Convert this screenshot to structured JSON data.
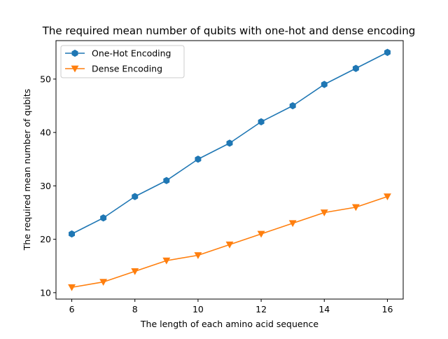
{
  "chart_data": {
    "type": "line",
    "title": "The required mean number of qubits with one-hot and dense encoding",
    "xlabel": "The length of each amino acid sequence",
    "ylabel": "The required mean number of qubits",
    "x": [
      6,
      7,
      8,
      9,
      10,
      11,
      12,
      13,
      14,
      15,
      16
    ],
    "xlim": [
      5.5,
      16.5
    ],
    "ylim": [
      8.8,
      57.2
    ],
    "xticks": [
      6,
      8,
      10,
      12,
      14,
      16
    ],
    "yticks": [
      10,
      20,
      30,
      40,
      50
    ],
    "grid": false,
    "legend_position": "upper-left",
    "series": [
      {
        "name": "One-Hot Encoding",
        "color": "#1f77b4",
        "marker": "hexagon",
        "values": [
          21,
          24,
          28,
          31,
          35,
          38,
          42,
          45,
          49,
          52,
          55
        ]
      },
      {
        "name": "Dense Encoding",
        "color": "#ff7f0e",
        "marker": "triangle-down",
        "values": [
          11,
          12,
          14,
          16,
          17,
          19,
          21,
          23,
          25,
          26,
          28
        ]
      }
    ]
  }
}
